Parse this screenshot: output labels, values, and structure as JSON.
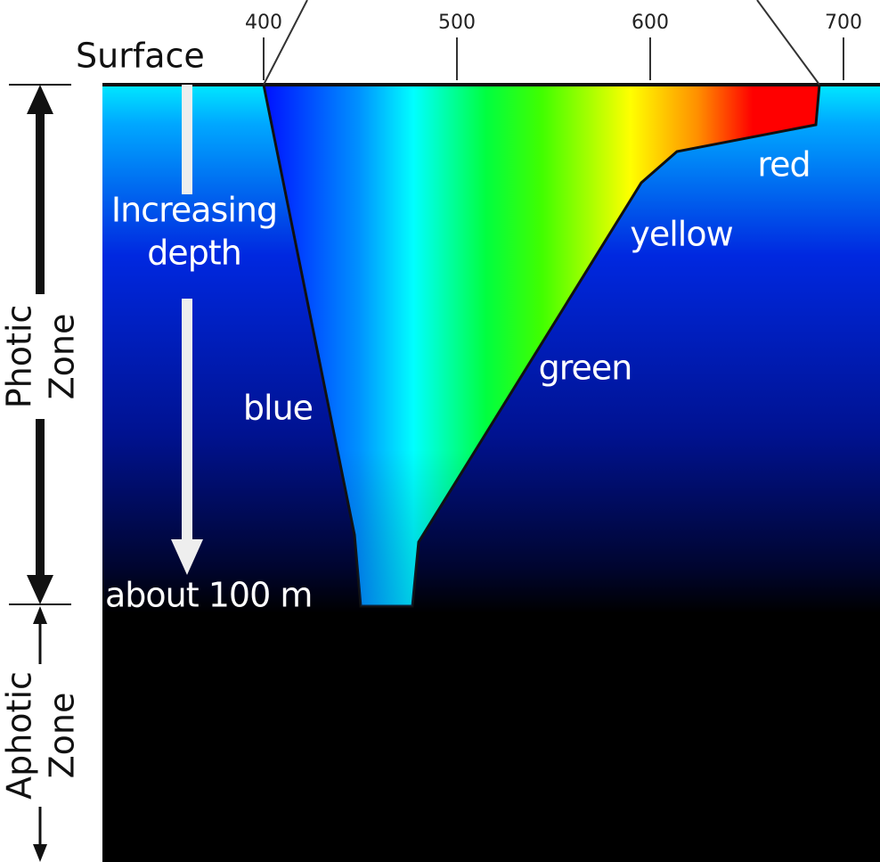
{
  "axis": {
    "ticks": [
      400,
      500,
      600,
      700
    ]
  },
  "surface": "Surface",
  "arrow_label": [
    "Increasing",
    "depth"
  ],
  "colors": {
    "blue": "blue",
    "green": "green",
    "yellow": "yellow",
    "red": "red"
  },
  "depth_label": "about 100 m",
  "zones": {
    "photic": [
      "Photic",
      "Zone"
    ],
    "aphotic": [
      "Aphotic",
      "Zone"
    ]
  }
}
